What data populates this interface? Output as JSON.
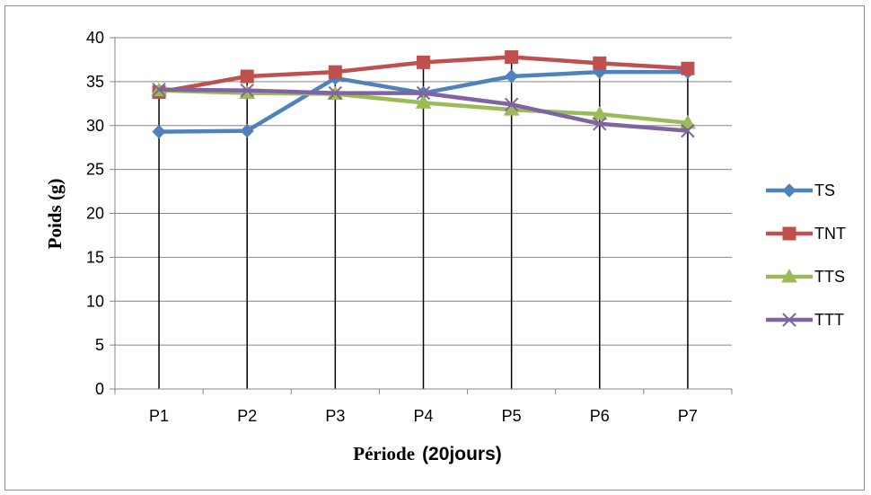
{
  "chart_data": {
    "type": "line",
    "categories": [
      "P1",
      "P2",
      "P3",
      "P4",
      "P5",
      "P6",
      "P7"
    ],
    "ylim": [
      0,
      40
    ],
    "yticks": [
      0,
      5,
      10,
      15,
      20,
      25,
      30,
      35,
      40
    ],
    "ylabel": "Poids (g)",
    "xlabel_main": "Période",
    "xlabel_sub": "(20jours)",
    "grid": "horizontal",
    "legend_position": "right",
    "series": [
      {
        "name": "TS",
        "color": "#4F81BD",
        "marker": "diamond",
        "values": [
          29.3,
          29.4,
          35.4,
          33.7,
          35.6,
          36.1,
          36.1
        ]
      },
      {
        "name": "TNT",
        "color": "#C0504D",
        "marker": "square",
        "values": [
          33.8,
          35.6,
          36.1,
          37.2,
          37.8,
          37.1,
          36.5
        ]
      },
      {
        "name": "TTS",
        "color": "#9BBB59",
        "marker": "triangle",
        "values": [
          34.0,
          33.7,
          33.6,
          32.6,
          31.8,
          31.3,
          30.3
        ]
      },
      {
        "name": "TTT",
        "color": "#8064A2",
        "marker": "x",
        "values": [
          34.1,
          34.0,
          33.7,
          33.7,
          32.4,
          30.2,
          29.4
        ]
      }
    ]
  }
}
